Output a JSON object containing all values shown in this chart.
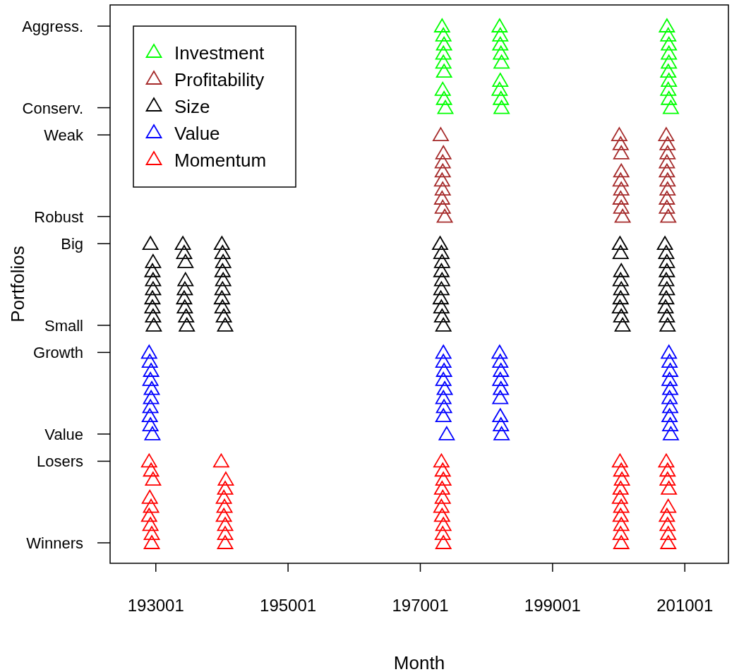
{
  "chart_data": {
    "type": "scatter",
    "orientation": "horizontal",
    "xlabel": "Month",
    "ylabel": "Portfolios",
    "xlim": [
      192310,
      201660
    ],
    "xticks": [
      193001,
      195001,
      197001,
      199001,
      201001
    ],
    "categories": [
      "Aggress.",
      null,
      null,
      null,
      null,
      null,
      null,
      null,
      null,
      "Conserv.",
      null,
      null,
      "Weak",
      null,
      null,
      null,
      null,
      null,
      null,
      null,
      null,
      "Robust",
      null,
      null,
      "Big",
      null,
      null,
      null,
      null,
      null,
      null,
      null,
      null,
      "Small",
      null,
      null,
      "Growth",
      null,
      null,
      null,
      null,
      null,
      null,
      null,
      null,
      "Value",
      null,
      null,
      "Losers",
      null,
      null,
      null,
      null,
      null,
      null,
      null,
      null,
      "Winners"
    ],
    "marker": "triangle",
    "legend": "top left",
    "grid": false,
    "series": [
      {
        "name": "Investment",
        "color": "#00ff00",
        "values": [
          197330,
          197350,
          197360,
          197350,
          197350,
          197360,
          null,
          197340,
          197360,
          197380,
          null,
          null,
          null,
          null,
          null,
          null,
          null,
          null,
          null,
          null,
          null,
          null,
          null,
          null,
          null,
          null,
          null,
          null,
          null,
          null,
          null,
          null,
          null,
          null,
          null,
          null,
          null,
          null,
          null,
          null,
          null,
          null,
          null,
          null,
          null,
          null,
          null,
          null,
          null,
          null,
          null,
          null,
          null,
          null,
          null,
          null,
          null,
          null
        ]
      },
      {
        "color": "#00ff00",
        "values": [
          198200,
          198210,
          198210,
          198220,
          198230,
          null,
          198210,
          198200,
          198220,
          198230,
          null,
          null,
          null,
          null,
          null,
          null,
          null,
          null,
          null,
          null,
          null,
          null,
          null,
          null,
          null,
          null,
          null,
          null,
          null,
          null,
          null,
          null,
          null,
          null,
          null,
          null,
          null,
          null,
          null,
          null,
          null,
          null,
          null,
          null,
          null,
          null,
          null,
          null,
          null,
          null,
          null,
          null,
          null,
          null,
          null,
          null,
          null,
          null
        ]
      },
      {
        "color": "#00ff00",
        "values": [
          200730,
          200750,
          200760,
          200760,
          200760,
          200750,
          200760,
          200750,
          200760,
          200790,
          null,
          null,
          null,
          null,
          null,
          null,
          null,
          null,
          null,
          null,
          null,
          null,
          null,
          null,
          null,
          null,
          null,
          null,
          null,
          null,
          null,
          null,
          null,
          null,
          null,
          null,
          null,
          null,
          null,
          null,
          null,
          null,
          null,
          null,
          null,
          null,
          null,
          null,
          null,
          null,
          null,
          null,
          null,
          null,
          null,
          null,
          null,
          null
        ]
      },
      {
        "name": "Profitability",
        "color": "#a52a2a",
        "values": [
          null,
          null,
          null,
          null,
          null,
          null,
          null,
          null,
          null,
          null,
          null,
          null,
          197310,
          null,
          197350,
          197340,
          197340,
          197330,
          197340,
          197330,
          197340,
          197370,
          null,
          null,
          null,
          null,
          null,
          null,
          null,
          null,
          null,
          null,
          null,
          null,
          null,
          null,
          null,
          null,
          null,
          null,
          null,
          null,
          null,
          null,
          null,
          null,
          null,
          null,
          null,
          null,
          null,
          null,
          null,
          null,
          null,
          null,
          null,
          null
        ]
      },
      {
        "color": "#a52a2a",
        "values": [
          null,
          null,
          null,
          null,
          null,
          null,
          null,
          null,
          null,
          null,
          null,
          null,
          200010,
          200030,
          200040,
          null,
          200040,
          200030,
          200040,
          200030,
          200040,
          200060,
          null,
          null,
          null,
          null,
          null,
          null,
          null,
          null,
          null,
          null,
          null,
          null,
          null,
          null,
          null,
          null,
          null,
          null,
          null,
          null,
          null,
          null,
          null,
          null,
          null,
          null,
          null,
          null,
          null,
          null,
          null,
          null,
          null,
          null,
          null,
          null
        ]
      },
      {
        "color": "#a52a2a",
        "values": [
          null,
          null,
          null,
          null,
          null,
          null,
          null,
          null,
          null,
          null,
          null,
          null,
          200720,
          200740,
          200740,
          200730,
          200730,
          200740,
          200740,
          200730,
          200730,
          200750,
          null,
          null,
          null,
          null,
          null,
          null,
          null,
          null,
          null,
          null,
          null,
          null,
          null,
          null,
          null,
          null,
          null,
          null,
          null,
          null,
          null,
          null,
          null,
          null,
          null,
          null,
          null,
          null,
          null,
          null,
          null,
          null,
          null,
          null,
          null,
          null
        ]
      },
      {
        "name": "Size",
        "color": "#000000",
        "values": [
          null,
          null,
          null,
          null,
          null,
          null,
          null,
          null,
          null,
          null,
          null,
          null,
          null,
          null,
          null,
          null,
          null,
          null,
          null,
          null,
          null,
          null,
          null,
          null,
          192920,
          null,
          192960,
          192950,
          192960,
          192960,
          192950,
          192950,
          192960,
          192970,
          null,
          null,
          null,
          null,
          null,
          null,
          null,
          null,
          null,
          null,
          null,
          null,
          null,
          null,
          null,
          null,
          null,
          null,
          null,
          null,
          null,
          null,
          null,
          null
        ]
      },
      {
        "color": "#000000",
        "values": [
          null,
          null,
          null,
          null,
          null,
          null,
          null,
          null,
          null,
          null,
          null,
          null,
          null,
          null,
          null,
          null,
          null,
          null,
          null,
          null,
          null,
          null,
          null,
          null,
          193410,
          193430,
          193450,
          null,
          193450,
          193440,
          193430,
          193440,
          193460,
          193470,
          null,
          null,
          null,
          null,
          null,
          null,
          null,
          null,
          null,
          null,
          null,
          null,
          null,
          null,
          null,
          null,
          null,
          null,
          null,
          null,
          null,
          null,
          null,
          null
        ]
      },
      {
        "color": "#000000",
        "values": [
          null,
          null,
          null,
          null,
          null,
          null,
          null,
          null,
          null,
          null,
          null,
          null,
          null,
          null,
          null,
          null,
          null,
          null,
          null,
          null,
          null,
          null,
          null,
          null,
          194000,
          194010,
          194020,
          194010,
          194020,
          194010,
          194000,
          194010,
          194030,
          194050,
          null,
          null,
          null,
          null,
          null,
          null,
          null,
          null,
          null,
          null,
          null,
          null,
          null,
          null,
          null,
          null,
          null,
          null,
          null,
          null,
          null,
          null,
          null,
          null
        ]
      },
      {
        "color": "#000000",
        "values": [
          null,
          null,
          null,
          null,
          null,
          null,
          null,
          null,
          null,
          null,
          null,
          null,
          null,
          null,
          null,
          null,
          null,
          null,
          null,
          null,
          null,
          null,
          null,
          null,
          197300,
          197320,
          197330,
          197320,
          197330,
          197320,
          197310,
          197320,
          197330,
          197350,
          null,
          null,
          null,
          null,
          null,
          null,
          null,
          null,
          null,
          null,
          null,
          null,
          null,
          null,
          null,
          null,
          null,
          null,
          null,
          null,
          null,
          null,
          null,
          null
        ]
      },
      {
        "color": "#000000",
        "values": [
          null,
          null,
          null,
          null,
          null,
          null,
          null,
          null,
          null,
          null,
          null,
          null,
          null,
          null,
          null,
          null,
          null,
          null,
          null,
          null,
          null,
          null,
          null,
          null,
          200020,
          200030,
          null,
          200040,
          200030,
          200040,
          200030,
          200020,
          200040,
          200060,
          null,
          null,
          null,
          null,
          null,
          null,
          null,
          null,
          null,
          null,
          null,
          null,
          null,
          null,
          null,
          null,
          null,
          null,
          null,
          null,
          null,
          null,
          null,
          null
        ]
      },
      {
        "color": "#000000",
        "values": [
          null,
          null,
          null,
          null,
          null,
          null,
          null,
          null,
          null,
          null,
          null,
          null,
          null,
          null,
          null,
          null,
          null,
          null,
          null,
          null,
          null,
          null,
          null,
          null,
          200700,
          200720,
          200730,
          200730,
          200720,
          200730,
          200720,
          200710,
          200730,
          200740,
          null,
          null,
          null,
          null,
          null,
          null,
          null,
          null,
          null,
          null,
          null,
          null,
          null,
          null,
          null,
          null,
          null,
          null,
          null,
          null,
          null,
          null,
          null,
          null
        ]
      },
      {
        "name": "Value",
        "color": "#0000ff",
        "values": [
          null,
          null,
          null,
          null,
          null,
          null,
          null,
          null,
          null,
          null,
          null,
          null,
          null,
          null,
          null,
          null,
          null,
          null,
          null,
          null,
          null,
          null,
          null,
          null,
          null,
          null,
          null,
          null,
          null,
          null,
          null,
          null,
          null,
          null,
          null,
          null,
          192900,
          192910,
          192930,
          192920,
          192940,
          192930,
          192920,
          192910,
          192920,
          192950,
          null,
          null,
          null,
          null,
          null,
          null,
          null,
          null,
          null,
          null,
          null,
          null
        ]
      },
      {
        "color": "#0000ff",
        "values": [
          null,
          null,
          null,
          null,
          null,
          null,
          null,
          null,
          null,
          null,
          null,
          null,
          null,
          null,
          null,
          null,
          null,
          null,
          null,
          null,
          null,
          null,
          null,
          null,
          null,
          null,
          null,
          null,
          null,
          null,
          null,
          null,
          null,
          null,
          null,
          null,
          197350,
          197350,
          197360,
          197350,
          197370,
          197350,
          197360,
          197350,
          null,
          197400,
          null,
          null,
          null,
          null,
          null,
          null,
          null,
          null,
          null,
          null,
          null,
          null
        ]
      },
      {
        "color": "#0000ff",
        "values": [
          null,
          null,
          null,
          null,
          null,
          null,
          null,
          null,
          null,
          null,
          null,
          null,
          null,
          null,
          null,
          null,
          null,
          null,
          null,
          null,
          null,
          null,
          null,
          null,
          null,
          null,
          null,
          null,
          null,
          null,
          null,
          null,
          null,
          null,
          null,
          null,
          198200,
          198210,
          198220,
          198210,
          198220,
          198210,
          null,
          198210,
          198220,
          198230,
          null,
          null,
          null,
          null,
          null,
          null,
          null,
          null,
          null,
          null,
          null,
          null
        ]
      },
      {
        "color": "#0000ff",
        "values": [
          null,
          null,
          null,
          null,
          null,
          null,
          null,
          null,
          null,
          null,
          null,
          null,
          null,
          null,
          null,
          null,
          null,
          null,
          null,
          null,
          null,
          null,
          null,
          null,
          null,
          null,
          null,
          null,
          null,
          null,
          null,
          null,
          null,
          null,
          null,
          null,
          200760,
          200770,
          200780,
          200770,
          200780,
          200770,
          200780,
          200770,
          200780,
          200790,
          null,
          null,
          null,
          null,
          null,
          null,
          null,
          null,
          null,
          null,
          null,
          null
        ]
      },
      {
        "name": "Momentum",
        "color": "#ff0000",
        "values": [
          null,
          null,
          null,
          null,
          null,
          null,
          null,
          null,
          null,
          null,
          null,
          null,
          null,
          null,
          null,
          null,
          null,
          null,
          null,
          null,
          null,
          null,
          null,
          null,
          null,
          null,
          null,
          null,
          null,
          null,
          null,
          null,
          null,
          null,
          null,
          null,
          null,
          null,
          null,
          null,
          null,
          null,
          null,
          null,
          null,
          null,
          null,
          null,
          192900,
          192930,
          192960,
          null,
          192910,
          192930,
          192900,
          192920,
          192940,
          192940
        ]
      },
      {
        "color": "#ff0000",
        "values": [
          null,
          null,
          null,
          null,
          null,
          null,
          null,
          null,
          null,
          null,
          null,
          null,
          null,
          null,
          null,
          null,
          null,
          null,
          null,
          null,
          null,
          null,
          null,
          null,
          null,
          null,
          null,
          null,
          null,
          null,
          null,
          null,
          null,
          null,
          null,
          null,
          null,
          null,
          null,
          null,
          null,
          null,
          null,
          null,
          null,
          null,
          null,
          null,
          193990,
          null,
          194060,
          194050,
          194030,
          194040,
          194030,
          194050,
          194050,
          194050
        ]
      },
      {
        "color": "#ff0000",
        "values": [
          null,
          null,
          null,
          null,
          null,
          null,
          null,
          null,
          null,
          null,
          null,
          null,
          null,
          null,
          null,
          null,
          null,
          null,
          null,
          null,
          null,
          null,
          null,
          null,
          null,
          null,
          null,
          null,
          null,
          null,
          null,
          null,
          null,
          null,
          null,
          null,
          null,
          null,
          null,
          null,
          null,
          null,
          null,
          null,
          null,
          null,
          null,
          null,
          197320,
          197340,
          197350,
          197330,
          197340,
          197320,
          197330,
          197350,
          197340,
          197350
        ]
      },
      {
        "color": "#ff0000",
        "values": [
          null,
          null,
          null,
          null,
          null,
          null,
          null,
          null,
          null,
          null,
          null,
          null,
          null,
          null,
          null,
          null,
          null,
          null,
          null,
          null,
          null,
          null,
          null,
          null,
          null,
          null,
          null,
          null,
          null,
          null,
          null,
          null,
          null,
          null,
          null,
          null,
          null,
          null,
          null,
          null,
          null,
          null,
          null,
          null,
          null,
          null,
          null,
          null,
          200020,
          200040,
          200050,
          200030,
          200020,
          200040,
          200030,
          200040,
          200030,
          200040
        ]
      },
      {
        "color": "#ff0000",
        "values": [
          null,
          null,
          null,
          null,
          null,
          null,
          null,
          null,
          null,
          null,
          null,
          null,
          null,
          null,
          null,
          null,
          null,
          null,
          null,
          null,
          null,
          null,
          null,
          null,
          null,
          null,
          null,
          null,
          null,
          null,
          null,
          null,
          null,
          null,
          null,
          null,
          null,
          null,
          null,
          null,
          null,
          null,
          null,
          null,
          null,
          null,
          null,
          null,
          200720,
          200740,
          200740,
          200760,
          null,
          200750,
          200730,
          200740,
          200750,
          200750
        ]
      }
    ]
  }
}
